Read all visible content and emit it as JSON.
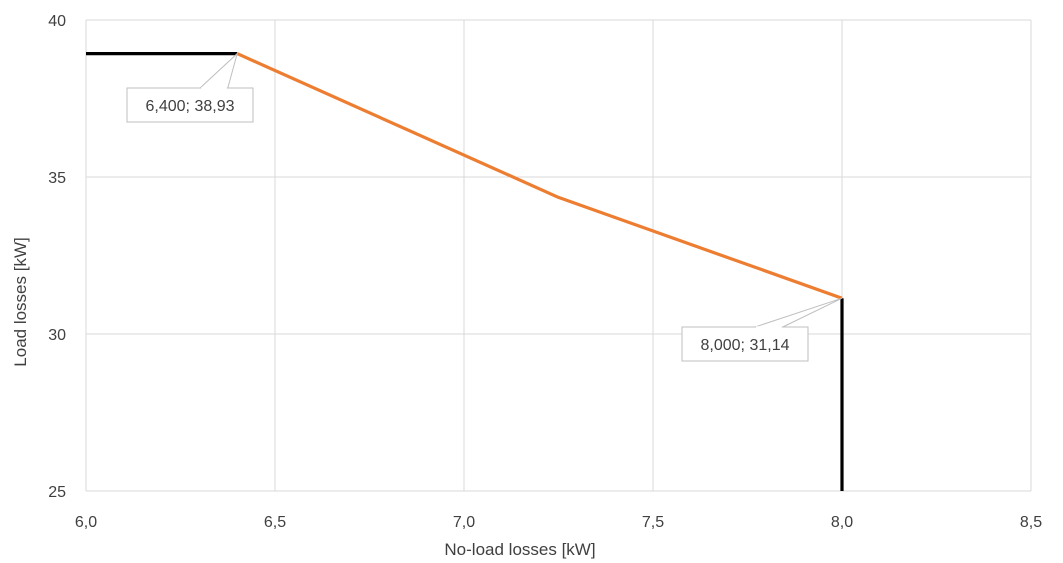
{
  "chart_data": {
    "type": "line",
    "title": "",
    "xlabel": "No-load losses [kW]",
    "ylabel": "Load losses [kW]",
    "xlim": [
      6.0,
      8.5
    ],
    "ylim": [
      25,
      40
    ],
    "x_ticks": [
      6.0,
      6.5,
      7.0,
      7.5,
      8.0,
      8.5
    ],
    "x_tick_labels": [
      "6,0",
      "6,5",
      "7,0",
      "7,5",
      "8,0",
      "8,5"
    ],
    "y_ticks": [
      25,
      30,
      35,
      40
    ],
    "y_tick_labels": [
      "25",
      "30",
      "35",
      "40"
    ],
    "grid": true,
    "series": [
      {
        "color": "#ed7d31",
        "points": [
          [
            6.4,
            38.93
          ],
          [
            7.25,
            34.35
          ],
          [
            8.0,
            31.14
          ]
        ]
      },
      {
        "color": "#000000",
        "points": [
          [
            6.0,
            38.93
          ],
          [
            6.4,
            38.93
          ]
        ]
      },
      {
        "color": "#000000",
        "points": [
          [
            8.0,
            31.14
          ],
          [
            8.0,
            25
          ]
        ]
      }
    ],
    "annotations": [
      {
        "text": "6,400; 38,93",
        "x": 6.4,
        "y": 38.93
      },
      {
        "text": "8,000; 31,14",
        "x": 8.0,
        "y": 31.14
      }
    ],
    "colors": {
      "grid": "#d9d9d9",
      "text": "#404040",
      "callout_border": "#bfbfbf"
    }
  }
}
